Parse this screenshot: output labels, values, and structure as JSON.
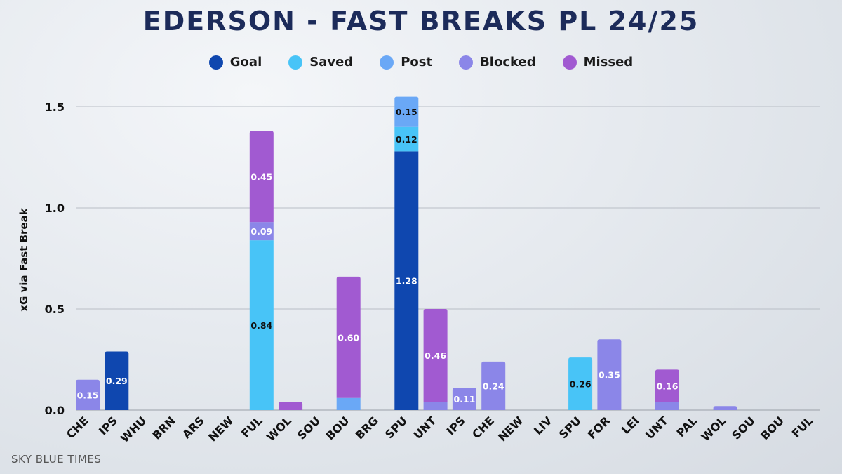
{
  "header": {
    "title": "EDERSON - FAST BREAKS PL 24/25"
  },
  "footer": {
    "credit": "SKY BLUE TIMES"
  },
  "colors": {
    "Goal": "#0f47af",
    "Saved": "#48c4f7",
    "Post": "#6aa8f6",
    "Blocked": "#8b86e8",
    "Missed": "#a15ad1"
  },
  "chart_data": {
    "type": "bar",
    "stacked": true,
    "title": "EDERSON - FAST BREAKS PL 24/25",
    "xlabel": "",
    "ylabel": "xG via Fast Break",
    "ylim": [
      0,
      1.6
    ],
    "yticks": [
      0.0,
      0.5,
      1.0,
      1.5
    ],
    "ytick_labels": [
      "0.0",
      "0.5",
      "1.0",
      "1.5"
    ],
    "legend": [
      "Goal",
      "Saved",
      "Post",
      "Blocked",
      "Missed"
    ],
    "legend_position": "top-center",
    "categories": [
      "CHE",
      "IPS",
      "WHU",
      "BRN",
      "ARS",
      "NEW",
      "FUL",
      "WOL",
      "SOU",
      "BOU",
      "BRG",
      "SPU",
      "UNT",
      "IPS",
      "CHE",
      "NEW",
      "LIV",
      "SPU",
      "FOR",
      "LEI",
      "UNT",
      "PAL",
      "WOL",
      "SOU",
      "BOU",
      "FUL"
    ],
    "series": [
      {
        "name": "Goal",
        "values": [
          0,
          0.29,
          0,
          0,
          0,
          0,
          0,
          0,
          0,
          0,
          0,
          1.28,
          0,
          0,
          0,
          0,
          0,
          0,
          0,
          0,
          0,
          0,
          0,
          0,
          0,
          0
        ]
      },
      {
        "name": "Saved",
        "values": [
          0,
          0,
          0,
          0,
          0,
          0,
          0.84,
          0,
          0,
          0,
          0,
          0.12,
          0,
          0,
          0,
          0,
          0,
          0.26,
          0,
          0,
          0,
          0,
          0,
          0,
          0,
          0
        ]
      },
      {
        "name": "Post",
        "values": [
          0,
          0,
          0,
          0,
          0,
          0,
          0,
          0,
          0,
          0.06,
          0,
          0.15,
          0,
          0,
          0,
          0,
          0,
          0,
          0,
          0,
          0,
          0,
          0,
          0,
          0,
          0
        ]
      },
      {
        "name": "Blocked",
        "values": [
          0.15,
          0,
          0,
          0,
          0,
          0,
          0.09,
          0,
          0,
          0,
          0,
          0,
          0.04,
          0.11,
          0.24,
          0,
          0,
          0,
          0.35,
          0,
          0.04,
          0,
          0.02,
          0,
          0,
          0
        ]
      },
      {
        "name": "Missed",
        "values": [
          0,
          0,
          0,
          0,
          0,
          0,
          0.45,
          0.04,
          0,
          0.6,
          0,
          0,
          0.46,
          0,
          0,
          0,
          0,
          0,
          0,
          0,
          0.16,
          0,
          0,
          0,
          0,
          0
        ]
      }
    ],
    "data_labels": [
      {
        "category_index": 0,
        "series": "Blocked",
        "text": "0.15"
      },
      {
        "category_index": 1,
        "series": "Goal",
        "text": "0.29"
      },
      {
        "category_index": 6,
        "series": "Saved",
        "text": "0.84"
      },
      {
        "category_index": 6,
        "series": "Blocked",
        "text": "0.09"
      },
      {
        "category_index": 6,
        "series": "Missed",
        "text": "0.45"
      },
      {
        "category_index": 9,
        "series": "Missed",
        "text": "0.60"
      },
      {
        "category_index": 11,
        "series": "Goal",
        "text": "1.28"
      },
      {
        "category_index": 11,
        "series": "Saved",
        "text": "0.12"
      },
      {
        "category_index": 11,
        "series": "Post",
        "text": "0.15"
      },
      {
        "category_index": 12,
        "series": "Missed",
        "text": "0.46"
      },
      {
        "category_index": 13,
        "series": "Blocked",
        "text": "0.11"
      },
      {
        "category_index": 14,
        "series": "Blocked",
        "text": "0.24"
      },
      {
        "category_index": 17,
        "series": "Saved",
        "text": "0.26"
      },
      {
        "category_index": 18,
        "series": "Blocked",
        "text": "0.35"
      },
      {
        "category_index": 20,
        "series": "Missed",
        "text": "0.16"
      }
    ]
  }
}
